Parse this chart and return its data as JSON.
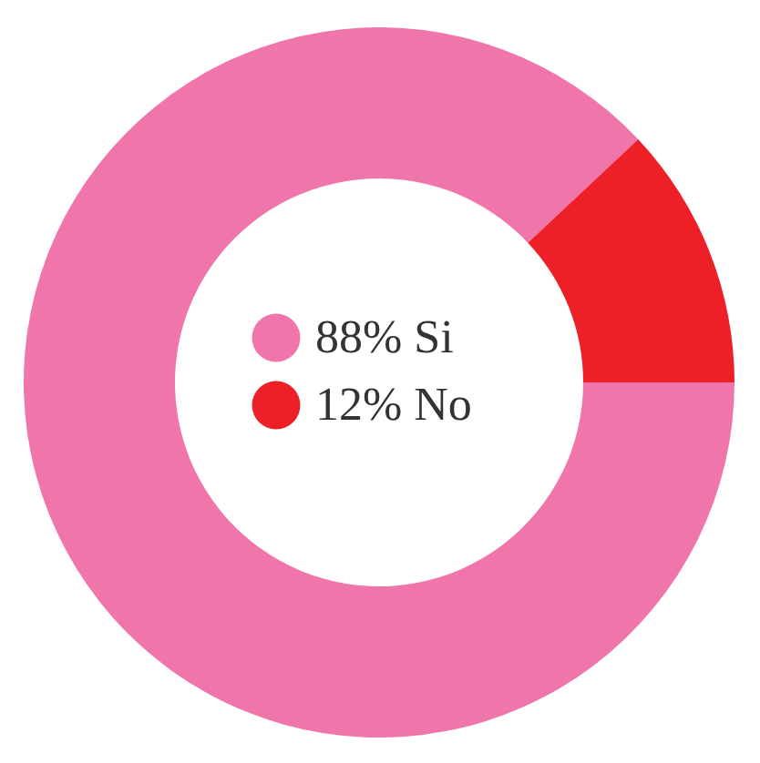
{
  "chart_data": {
    "type": "donut",
    "categories": [
      "Si",
      "No"
    ],
    "values": [
      88,
      12
    ],
    "colors": [
      "#f075aa",
      "#ee2027"
    ],
    "value_labels": [
      "88%",
      "12%"
    ],
    "legend": "center"
  }
}
